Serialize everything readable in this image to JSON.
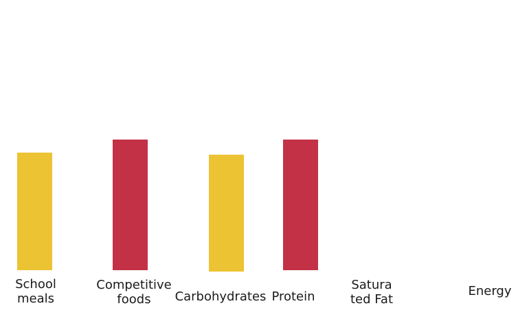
{
  "chart_data": {
    "type": "bar",
    "colors": {
      "yellow": "#ECC333",
      "red": "#C33146"
    },
    "bars": [
      {
        "label": "School meals",
        "value": 171,
        "color": "#ECC333"
      },
      {
        "label": "Competitive foods",
        "value": 190,
        "color": "#C33146"
      },
      {
        "label": "Carbohydrates",
        "value": 170,
        "color": "#ECC333"
      },
      {
        "label": "Protein",
        "value": 190,
        "color": "#C33146"
      },
      {
        "label": "Satura ted Fat",
        "value": null,
        "color": null
      },
      {
        "label": "Energy",
        "value": null,
        "color": null
      }
    ],
    "ylim": [
      0,
      393
    ]
  },
  "labels": [
    "School\nmeals",
    "Competitive\nfoods",
    "Carbohydrates",
    "Protein",
    "Satura\nted Fat",
    "Energy"
  ]
}
